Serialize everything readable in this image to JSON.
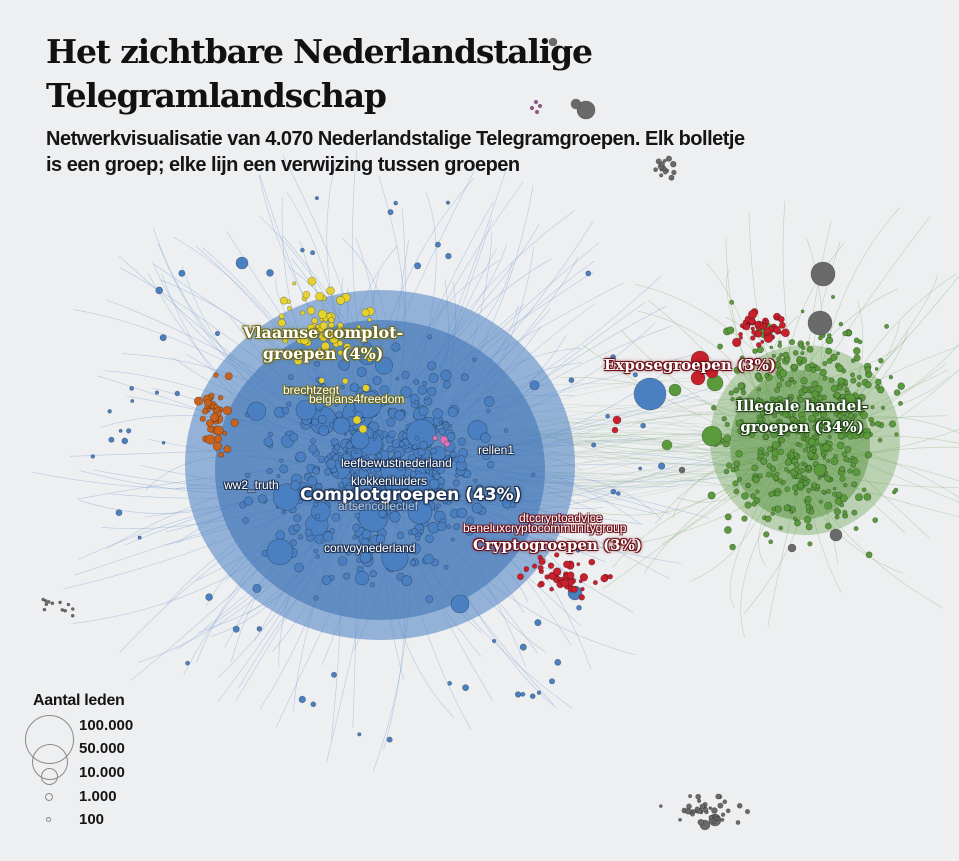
{
  "header": {
    "title_line1": "Het zichtbare Nederlandstalige",
    "title_line2": "Telegramlandschap",
    "subtitle_line1": "Netwerkvisualisatie van 4.070 Nederlandstalige Telegramgroepen. Elk bolletje",
    "subtitle_line2": "is een groep; elke lijn een verwijzing tussen groepen"
  },
  "network": {
    "total_groups": "4.070",
    "clusters": [
      {
        "id": "complot",
        "label": "Complotgroepen (43%)",
        "share": 43,
        "color": "#4a7fc1"
      },
      {
        "id": "illegaal",
        "label_line1": "Illegale handel-",
        "label_line2": "groepen (34%)",
        "share": 34,
        "color": "#5a9a3c"
      },
      {
        "id": "vlaams",
        "label_line1": "Vlaamse complot-",
        "label_line2": "groepen (4%)",
        "share": 4,
        "color": "#e6d22e"
      },
      {
        "id": "expose",
        "label": "Exposegroepen (3%)",
        "share": 3,
        "color": "#c8202c"
      },
      {
        "id": "crypto",
        "label": "Cryptogroepen (3%)",
        "share": 3,
        "color": "#c8202c"
      }
    ],
    "other_colors": {
      "orange": "#c8621c",
      "grey": "#6a6a6a",
      "pink": "#d774b4",
      "amber": "#e8a22a"
    },
    "node_labels": [
      {
        "text": "brechtzegt",
        "cluster": "vlaams"
      },
      {
        "text": "belgians4freedom",
        "cluster": "vlaams"
      },
      {
        "text": "rellen1",
        "cluster": "complot"
      },
      {
        "text": "leefbewustnederland",
        "cluster": "complot"
      },
      {
        "text": "klokkenluiders",
        "cluster": "complot"
      },
      {
        "text": "ww2_truth",
        "cluster": "complot"
      },
      {
        "text": "artsencollectief",
        "cluster": "complot"
      },
      {
        "text": "convoynederland",
        "cluster": "complot"
      },
      {
        "text": "dtccryptoadvice",
        "cluster": "crypto"
      },
      {
        "text": "beneluxcryptocommunitygroup",
        "cluster": "crypto"
      }
    ]
  },
  "legend": {
    "title": "Aantal leden",
    "items": [
      {
        "label": "100.000",
        "members": 100000
      },
      {
        "label": "50.000",
        "members": 50000
      },
      {
        "label": "10.000",
        "members": 10000
      },
      {
        "label": "1.000",
        "members": 1000
      },
      {
        "label": "100",
        "members": 100
      }
    ]
  }
}
